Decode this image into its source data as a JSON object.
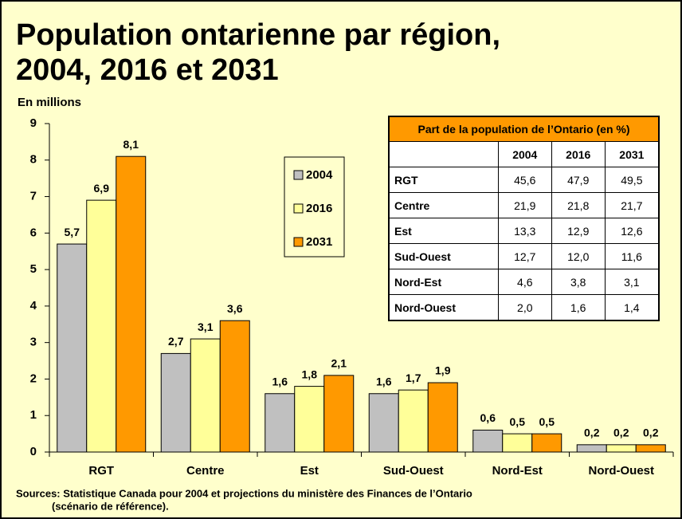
{
  "chart_data": {
    "type": "bar",
    "title": "Population ontarienne par région,",
    "title_line2": "2004, 2016 et 2031",
    "y_label": "En millions",
    "categories": [
      "RGT",
      "Centre",
      "Est",
      "Sud-Ouest",
      "Nord-Est",
      "Nord-Ouest"
    ],
    "series": [
      {
        "name": "2004",
        "color": "#c0c0c0",
        "values": [
          5.7,
          2.7,
          1.6,
          1.6,
          0.6,
          0.2
        ],
        "value_labels": [
          "5,7",
          "2,7",
          "1,6",
          "1,6",
          "0,6",
          "0,2"
        ]
      },
      {
        "name": "2016",
        "color": "#ffff99",
        "values": [
          6.9,
          3.1,
          1.8,
          1.7,
          0.5,
          0.2
        ],
        "value_labels": [
          "6,9",
          "3,1",
          "1,8",
          "1,7",
          "0,5",
          "0,2"
        ]
      },
      {
        "name": "2031",
        "color": "#ff9900",
        "values": [
          8.1,
          3.6,
          2.1,
          1.9,
          0.5,
          0.2
        ],
        "value_labels": [
          "8,1",
          "3,6",
          "2,1",
          "1,9",
          "0,5",
          "0,2"
        ]
      }
    ],
    "ylim": [
      0,
      9
    ],
    "yticks": [
      0,
      1,
      2,
      3,
      4,
      5,
      6,
      7,
      8,
      9
    ],
    "source": "Sources: Statistique Canada pour 2004 et projections du ministère des Finances de l’Ontario",
    "source_line2": "(scénario de référence)."
  },
  "table": {
    "title": "Part de la population de l’Ontario (en %)",
    "columns": [
      "2004",
      "2016",
      "2031"
    ],
    "rows": [
      [
        "RGT",
        "45,6",
        "47,9",
        "49,5"
      ],
      [
        "Centre",
        "21,9",
        "21,8",
        "21,7"
      ],
      [
        "Est",
        "13,3",
        "12,9",
        "12,6"
      ],
      [
        "Sud-Ouest",
        "12,7",
        "12,0",
        "11,6"
      ],
      [
        "Nord-Est",
        "4,6",
        "3,8",
        "3,1"
      ],
      [
        "Nord-Ouest",
        "2,0",
        "1,6",
        "1,4"
      ]
    ]
  }
}
